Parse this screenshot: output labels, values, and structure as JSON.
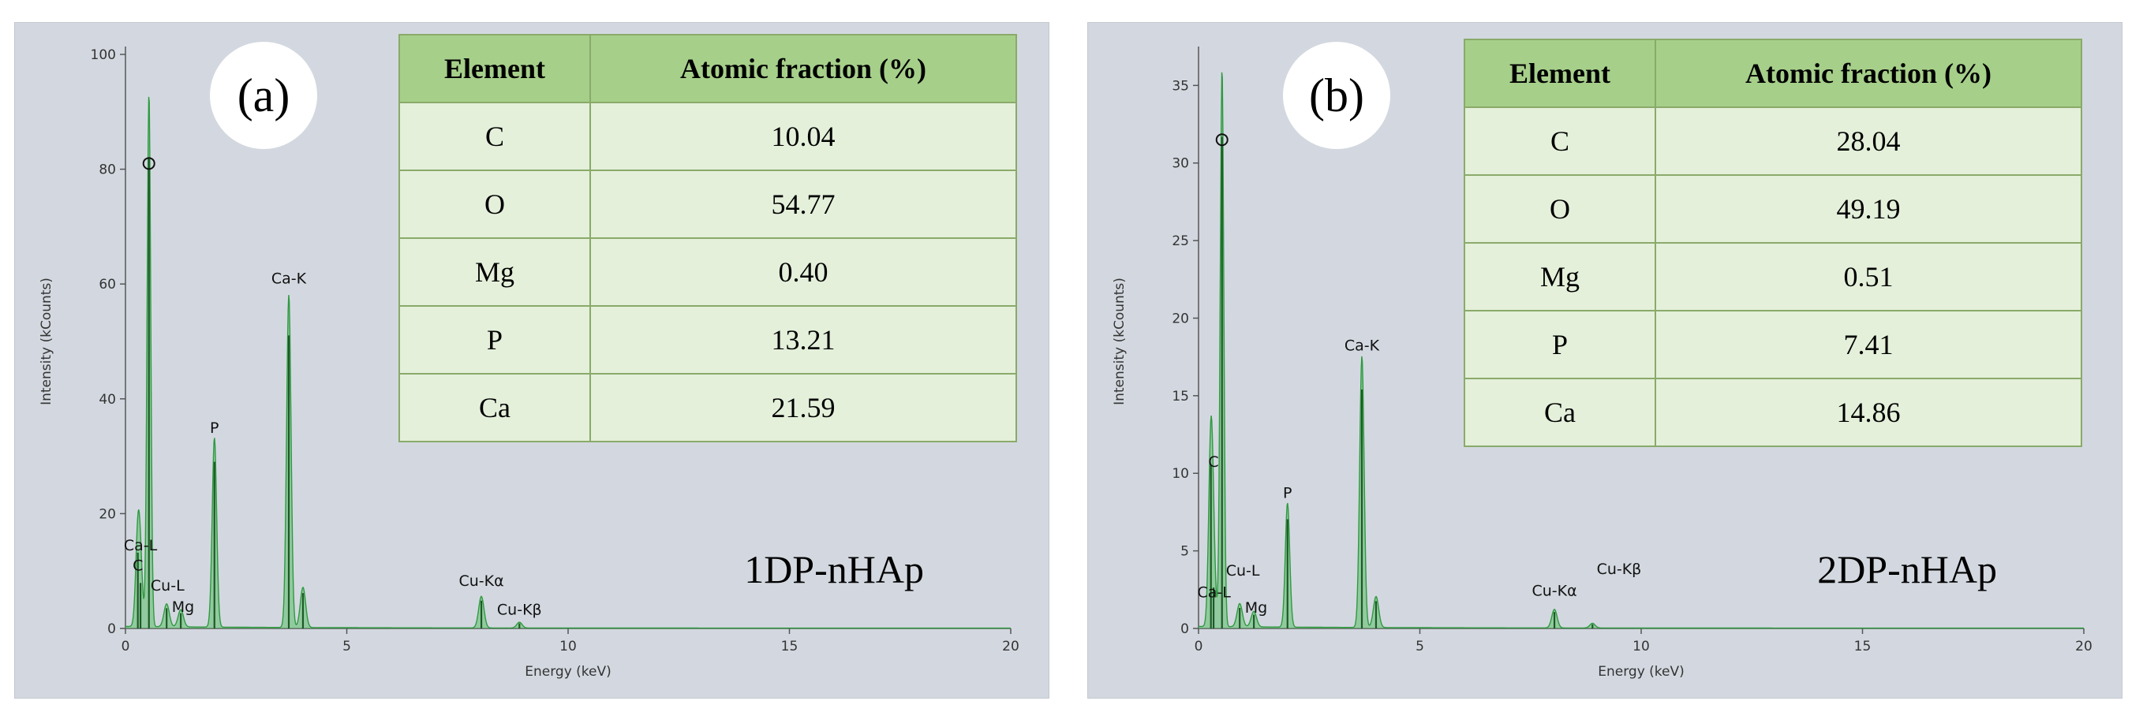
{
  "chart_data": [
    {
      "type": "line",
      "panel": "(a)",
      "sample": "1DP-nHAp",
      "xlabel": "Energy (keV)",
      "ylabel": "Intensity (kCounts)",
      "xlim": [
        0,
        20
      ],
      "ylim": [
        0,
        100
      ],
      "xticks": [
        0,
        5,
        10,
        15,
        20
      ],
      "yticks": [
        0,
        20,
        40,
        60,
        80,
        100
      ],
      "series_color": "#3aa84a",
      "peaks": [
        {
          "x": 0.28,
          "y": 15,
          "w": 0.05
        },
        {
          "x": 0.34,
          "y": 9,
          "w": 0.05
        },
        {
          "x": 0.53,
          "y": 93,
          "w": 0.04
        },
        {
          "x": 0.93,
          "y": 4,
          "w": 0.06
        },
        {
          "x": 1.25,
          "y": 3,
          "w": 0.06
        },
        {
          "x": 2.01,
          "y": 33,
          "w": 0.05
        },
        {
          "x": 3.69,
          "y": 58,
          "w": 0.05
        },
        {
          "x": 4.01,
          "y": 7,
          "w": 0.06
        },
        {
          "x": 8.04,
          "y": 5.5,
          "w": 0.06
        },
        {
          "x": 8.9,
          "y": 1,
          "w": 0.06
        }
      ],
      "annotations": [
        {
          "text": "O",
          "x": 0.53,
          "y": 81
        },
        {
          "text": "Ca-K",
          "x": 3.69,
          "y": 59
        },
        {
          "text": "P",
          "x": 2.01,
          "y": 33
        },
        {
          "text": "Ca-L",
          "x": 0.34,
          "y": 12.5
        },
        {
          "text": "C",
          "x": 0.28,
          "y": 9
        },
        {
          "text": "Cu-L",
          "x": 0.95,
          "y": 5.5
        },
        {
          "text": "Mg",
          "x": 1.3,
          "y": 1.8
        },
        {
          "text": "Cu-Kα",
          "x": 8.04,
          "y": 6.3
        },
        {
          "text": "Cu-Kβ",
          "x": 8.9,
          "y": 1.3
        }
      ],
      "table": {
        "headers": [
          "Element",
          "Atomic fraction (%)"
        ],
        "rows": [
          [
            "C",
            "10.04"
          ],
          [
            "O",
            "54.77"
          ],
          [
            "Mg",
            "0.40"
          ],
          [
            "P",
            "13.21"
          ],
          [
            "Ca",
            "21.59"
          ]
        ]
      }
    },
    {
      "type": "line",
      "panel": "(b)",
      "sample": "2DP-nHAp",
      "xlabel": "Energy (keV)",
      "ylabel": "Intensity (kCounts)",
      "xlim": [
        0,
        20
      ],
      "ylim": [
        0,
        37
      ],
      "xticks": [
        0,
        5,
        10,
        15,
        20
      ],
      "yticks": [
        0,
        5,
        10,
        15,
        20,
        25,
        30,
        35
      ],
      "series_color": "#3aa84a",
      "peaks": [
        {
          "x": 0.28,
          "y": 12,
          "w": 0.05
        },
        {
          "x": 0.34,
          "y": 3,
          "w": 0.05
        },
        {
          "x": 0.53,
          "y": 36,
          "w": 0.04
        },
        {
          "x": 0.93,
          "y": 1.5,
          "w": 0.06
        },
        {
          "x": 1.25,
          "y": 1,
          "w": 0.06
        },
        {
          "x": 2.01,
          "y": 8,
          "w": 0.05
        },
        {
          "x": 3.69,
          "y": 17.5,
          "w": 0.05
        },
        {
          "x": 4.01,
          "y": 2,
          "w": 0.06
        },
        {
          "x": 8.04,
          "y": 1.2,
          "w": 0.06
        },
        {
          "x": 8.9,
          "y": 0.3,
          "w": 0.06
        }
      ],
      "annotations": [
        {
          "text": "O",
          "x": 0.53,
          "y": 31.5
        },
        {
          "text": "Ca-K",
          "x": 3.69,
          "y": 17.5
        },
        {
          "text": "P",
          "x": 2.01,
          "y": 8
        },
        {
          "text": "C",
          "x": 0.34,
          "y": 10
        },
        {
          "text": "Cu-L",
          "x": 1.0,
          "y": 3
        },
        {
          "text": "Ca-L",
          "x": 0.35,
          "y": 1.6
        },
        {
          "text": "Mg",
          "x": 1.3,
          "y": 0.6
        },
        {
          "text": "Cu-Kα",
          "x": 8.04,
          "y": 1.7
        },
        {
          "text": "Cu-Kβ",
          "x": 9.5,
          "y": 3.1
        }
      ],
      "table": {
        "headers": [
          "Element",
          "Atomic fraction (%)"
        ],
        "rows": [
          [
            "C",
            "28.04"
          ],
          [
            "O",
            "49.19"
          ],
          [
            "Mg",
            "0.51"
          ],
          [
            "P",
            "7.41"
          ],
          [
            "Ca",
            "14.86"
          ]
        ]
      }
    }
  ]
}
